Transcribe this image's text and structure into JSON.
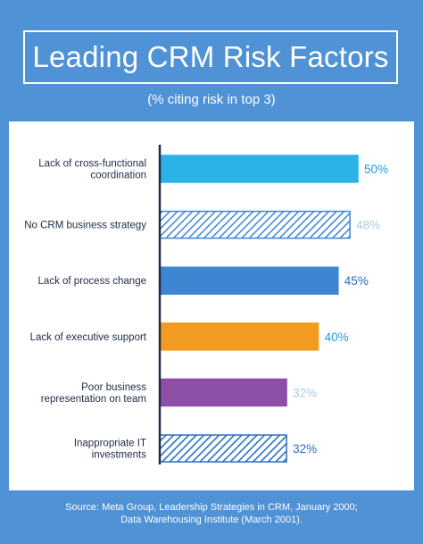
{
  "header": {
    "title": "Leading CRM Risk Factors",
    "subtitle": "(% citing risk in top 3)"
  },
  "footer": {
    "line1": "Source: Meta Group, Leadership Strategies in CRM, January 2000;",
    "line2": "Data Warehousing Institute (March 2001)."
  },
  "colors": {
    "background": "#4f92d6",
    "panel": "#ffffff",
    "axis": "#1f2a44"
  },
  "chart_data": {
    "type": "bar",
    "orientation": "horizontal",
    "title": "Leading CRM Risk Factors",
    "subtitle": "(% citing risk in top 3)",
    "unit": "%",
    "xlim": [
      0,
      50
    ],
    "grid": false,
    "legend": "none",
    "categories": [
      [
        "Lack of cross-functional",
        "coordination"
      ],
      [
        "No CRM business strategy"
      ],
      [
        "Lack of process change"
      ],
      [
        "Lack of executive support"
      ],
      [
        "Poor business",
        "representation on team"
      ],
      [
        "Inappropriate IT",
        "investments"
      ]
    ],
    "values": [
      50,
      48,
      45,
      40,
      32,
      32
    ],
    "value_labels": [
      "50%",
      "48%",
      "45%",
      "40%",
      "32%",
      "32%"
    ],
    "bar_colors": [
      "#2bb3e8",
      "#3f86d2",
      "#3f86d2",
      "#f29b20",
      "#8e4fa7",
      "#2a6fc0"
    ],
    "bar_patterns": [
      "solid",
      "hatched",
      "solid",
      "solid",
      "solid",
      "hatched"
    ],
    "label_colors": [
      "#1f9bd7",
      "#a9cbe8",
      "#2a6fc0",
      "#1f9bd7",
      "#a9cbe8",
      "#2a6fc0"
    ]
  }
}
